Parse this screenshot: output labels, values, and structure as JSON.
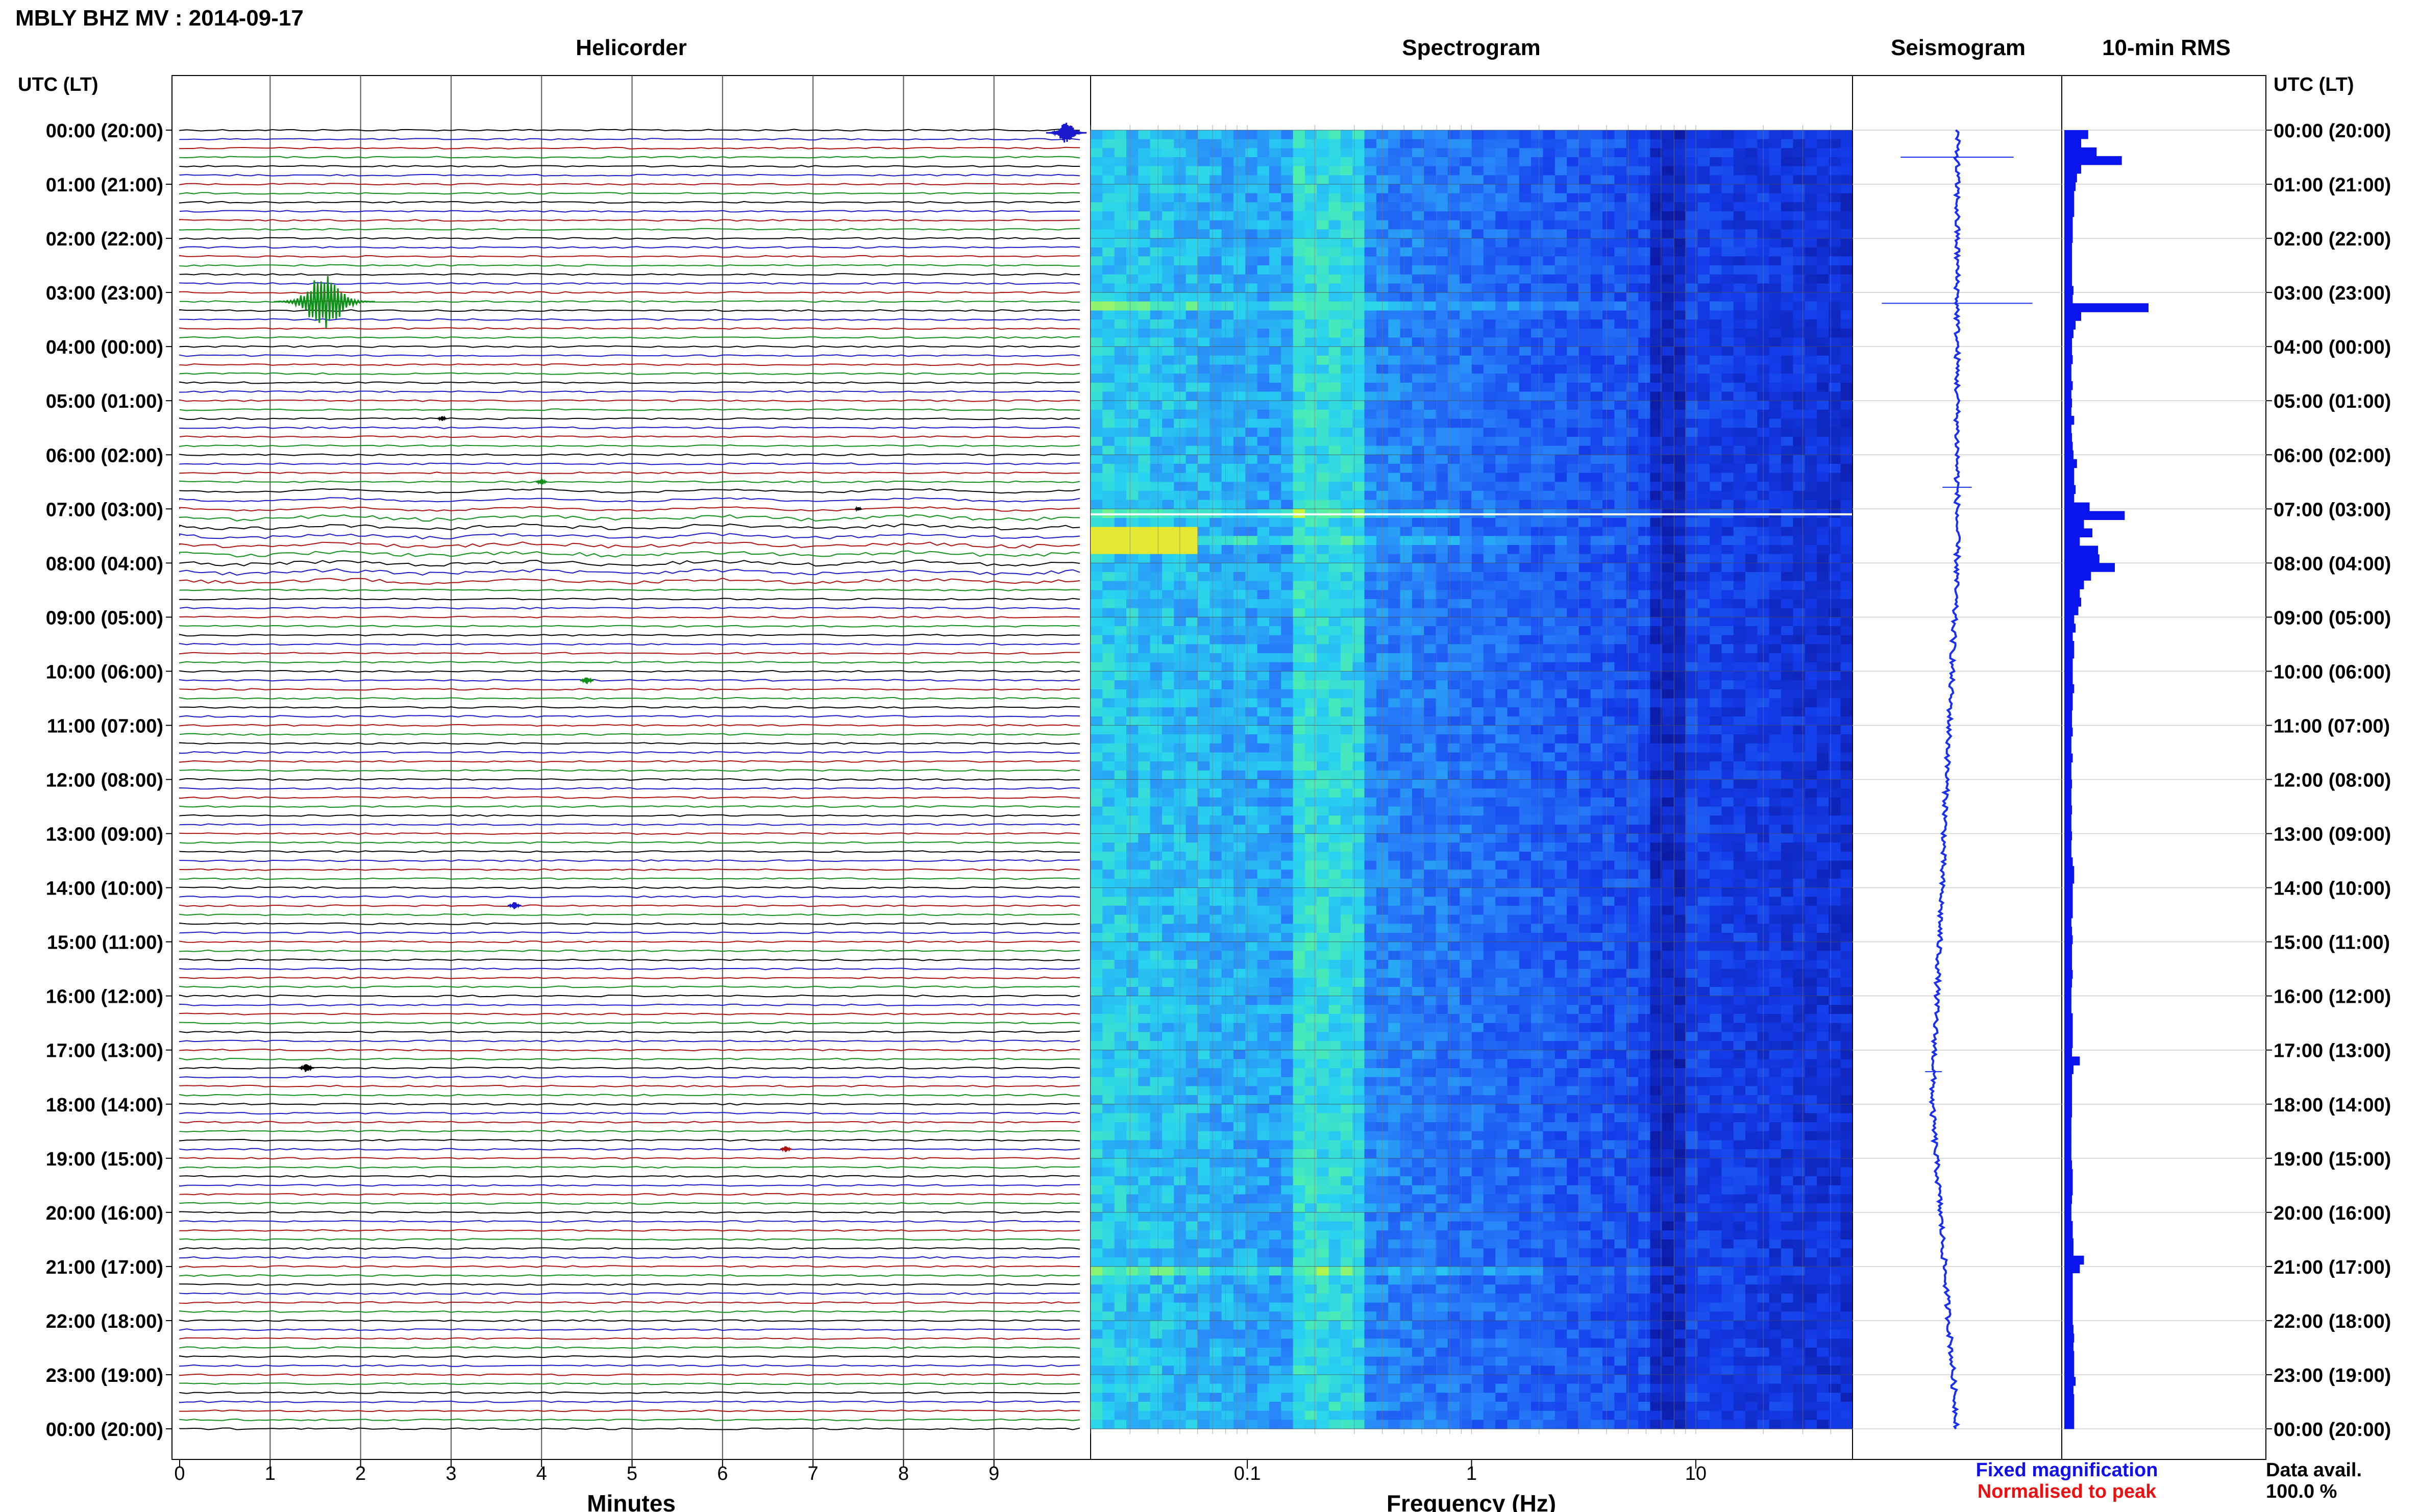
{
  "page_title": "MBLY BHZ MV : 2014-09-17",
  "time_axis": {
    "label": "UTC (LT)",
    "ticks": [
      "00:00 (20:00)",
      "01:00 (21:00)",
      "02:00 (22:00)",
      "03:00 (23:00)",
      "04:00 (00:00)",
      "05:00 (01:00)",
      "06:00 (02:00)",
      "07:00 (03:00)",
      "08:00 (04:00)",
      "09:00 (05:00)",
      "10:00 (06:00)",
      "11:00 (07:00)",
      "12:00 (08:00)",
      "13:00 (09:00)",
      "14:00 (10:00)",
      "15:00 (11:00)",
      "16:00 (12:00)",
      "17:00 (13:00)",
      "18:00 (14:00)",
      "19:00 (15:00)",
      "20:00 (16:00)",
      "21:00 (17:00)",
      "22:00 (18:00)",
      "23:00 (19:00)",
      "00:00 (20:00)"
    ]
  },
  "legend": {
    "fixed_magnification": "Fixed magnification",
    "normalised_to_peak": "Normalised to peak",
    "data_avail_label": "Data avail.",
    "data_avail_value": "100.0 %",
    "fixed_color": "#1010ee",
    "normalised_color": "#ee1010"
  },
  "colors": {
    "trace_cycle": [
      "#000000",
      "#1a1acc",
      "#b01010",
      "#10901a"
    ],
    "rms_bar": "#0a14ee",
    "seismogram": "#1a30ee"
  },
  "chart_data": [
    {
      "type": "line",
      "name": "helicorder",
      "title": "Helicorder",
      "xlabel": "Minutes",
      "xlim": [
        0,
        10
      ],
      "x_ticks": [
        "0",
        "1",
        "2",
        "3",
        "4",
        "5",
        "6",
        "7",
        "8",
        "9"
      ],
      "rows_per_hour": 6,
      "row_minutes": 10,
      "events": [
        {
          "hour": 0.05,
          "minute": 9.8,
          "amp": 18,
          "color": "#1a1acc"
        },
        {
          "hour": 3.17,
          "minute": 1.6,
          "amp": 45,
          "color": "#10901a"
        },
        {
          "hour": 5.33,
          "minute": 2.9,
          "amp": 4,
          "color": "#000000"
        },
        {
          "hour": 6.5,
          "minute": 4.0,
          "amp": 5,
          "color": "#10901a"
        },
        {
          "hour": 7.0,
          "minute": 7.5,
          "amp": 3,
          "color": "#000000"
        },
        {
          "hour": 10.17,
          "minute": 4.5,
          "amp": 6,
          "color": "#10901a"
        },
        {
          "hour": 14.33,
          "minute": 3.7,
          "amp": 6,
          "color": "#1a1acc"
        },
        {
          "hour": 17.33,
          "minute": 1.4,
          "amp": 7,
          "color": "#000000"
        },
        {
          "hour": 18.83,
          "minute": 6.7,
          "amp": 5,
          "color": "#b01010"
        }
      ]
    },
    {
      "type": "heatmap",
      "name": "spectrogram",
      "title": "Spectrogram",
      "xlabel": "Frequency (Hz)",
      "x_scale": "log",
      "xlim": [
        0.02,
        50
      ],
      "x_ticks": [
        {
          "value": 0.1,
          "label": "0.1"
        },
        {
          "value": 1,
          "label": "1"
        },
        {
          "value": 10,
          "label": "10"
        }
      ],
      "colormap": "blue-cyan-yellow",
      "hot_band_hz": [
        0.15,
        0.3
      ],
      "bright_event_hours": [
        3.2,
        7.0,
        7.5,
        21.0
      ]
    },
    {
      "type": "line",
      "name": "seismogram",
      "title": "Seismogram",
      "offset_drift": [
        {
          "hour": 0,
          "x": 0.5
        },
        {
          "hour": 8,
          "x": 0.5
        },
        {
          "hour": 12,
          "x": 0.45
        },
        {
          "hour": 18,
          "x": 0.38
        },
        {
          "hour": 24,
          "x": 0.5
        }
      ],
      "spikes": [
        {
          "hour": 0.5,
          "half_width": 0.27
        },
        {
          "hour": 3.2,
          "half_width": 0.36
        },
        {
          "hour": 6.6,
          "half_width": 0.07
        },
        {
          "hour": 17.4,
          "half_width": 0.04
        }
      ]
    },
    {
      "type": "bar",
      "name": "rms",
      "title": "10-min RMS",
      "orientation": "horizontal",
      "bin_minutes": 10,
      "values": [
        0.34,
        0.24,
        0.46,
        0.82,
        0.24,
        0.18,
        0.16,
        0.14,
        0.14,
        0.14,
        0.12,
        0.12,
        0.12,
        0.11,
        0.11,
        0.11,
        0.11,
        0.11,
        0.13,
        0.12,
        1.2,
        0.24,
        0.16,
        0.13,
        0.11,
        0.11,
        0.12,
        0.1,
        0.1,
        0.12,
        0.1,
        0.11,
        0.1,
        0.14,
        0.1,
        0.11,
        0.12,
        0.13,
        0.18,
        0.14,
        0.14,
        0.16,
        0.14,
        0.36,
        0.86,
        0.28,
        0.4,
        0.22,
        0.48,
        0.5,
        0.72,
        0.38,
        0.28,
        0.22,
        0.24,
        0.2,
        0.14,
        0.16,
        0.12,
        0.14,
        0.14,
        0.12,
        0.12,
        0.12,
        0.14,
        0.12,
        0.12,
        0.11,
        0.11,
        0.12,
        0.1,
        0.1,
        0.12,
        0.1,
        0.1,
        0.11,
        0.1,
        0.1,
        0.11,
        0.1,
        0.1,
        0.11,
        0.1,
        0.1,
        0.12,
        0.14,
        0.14,
        0.12,
        0.12,
        0.12,
        0.12,
        0.1,
        0.11,
        0.12,
        0.11,
        0.11,
        0.11,
        0.12,
        0.11,
        0.1,
        0.1,
        0.1,
        0.12,
        0.12,
        0.12,
        0.12,
        0.11,
        0.22,
        0.13,
        0.11,
        0.11,
        0.11,
        0.11,
        0.11,
        0.1,
        0.1,
        0.1,
        0.1,
        0.1,
        0.11,
        0.12,
        0.12,
        0.12,
        0.11,
        0.1,
        0.1,
        0.12,
        0.12,
        0.13,
        0.13,
        0.28,
        0.22,
        0.12,
        0.12,
        0.12,
        0.12,
        0.12,
        0.12,
        0.13,
        0.14,
        0.13,
        0.14,
        0.14,
        0.14,
        0.16,
        0.13,
        0.14,
        0.14,
        0.14,
        0.14
      ]
    }
  ]
}
